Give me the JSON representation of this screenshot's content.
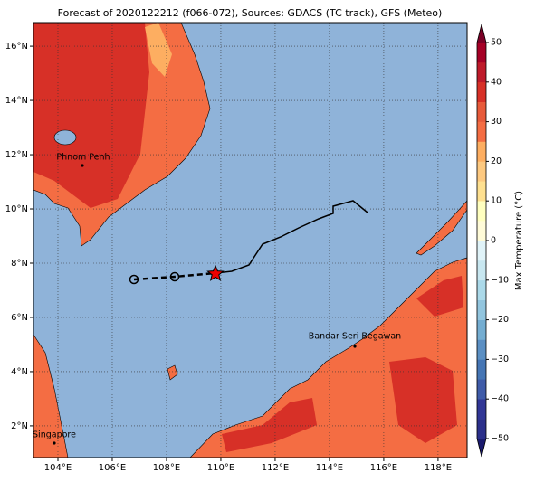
{
  "title": "Forecast of 2020122212 (f066-072), Sources: GDACS (TC track), GFS (Meteo)",
  "map": {
    "lonlim": [
      103.1,
      119.07
    ],
    "latlim": [
      0.83,
      16.87
    ],
    "lonticks": [
      {
        "value": 104,
        "label": "104°E"
      },
      {
        "value": 106,
        "label": "106°E"
      },
      {
        "value": 108,
        "label": "108°E"
      },
      {
        "value": 110,
        "label": "110°E"
      },
      {
        "value": 112,
        "label": "112°E"
      },
      {
        "value": 114,
        "label": "114°E"
      },
      {
        "value": 116,
        "label": "116°E"
      },
      {
        "value": 118,
        "label": "118°E"
      }
    ],
    "latticks": [
      {
        "value": 2,
        "label": "2°N"
      },
      {
        "value": 4,
        "label": "4°N"
      },
      {
        "value": 6,
        "label": "6°N"
      },
      {
        "value": 8,
        "label": "8°N"
      },
      {
        "value": 10,
        "label": "10°N"
      },
      {
        "value": 12,
        "label": "12°N"
      },
      {
        "value": 14,
        "label": "14°N"
      },
      {
        "value": 16,
        "label": "16°N"
      }
    ],
    "places": [
      "Phnom Penh",
      "Bandar Seri Begawan",
      "Singapore"
    ]
  },
  "colorbar": {
    "label": "Max Temperature (°C)",
    "lim": [
      -50,
      50
    ],
    "ticks": [
      {
        "value": -50,
        "label": "−50"
      },
      {
        "value": -40,
        "label": "−40"
      },
      {
        "value": -30,
        "label": "−30"
      },
      {
        "value": -20,
        "label": "−20"
      },
      {
        "value": -10,
        "label": "−10"
      },
      0,
      10,
      20,
      30,
      40,
      50
    ],
    "colors": [
      "#2b2f8a",
      "#313695",
      "#3f5ba8",
      "#4575b4",
      "#5b8fc3",
      "#74add1",
      "#92c5de",
      "#abd9e9",
      "#c8e7f0",
      "#e0f3f8",
      "#fffbd8",
      "#ffffbf",
      "#fee090",
      "#fdc980",
      "#fdae61",
      "#f46d43",
      "#e75a3a",
      "#d73027",
      "#be1a2a",
      "#a50026"
    ],
    "extend_colors": [
      "#1a1a6e",
      "#7a0026"
    ]
  }
}
